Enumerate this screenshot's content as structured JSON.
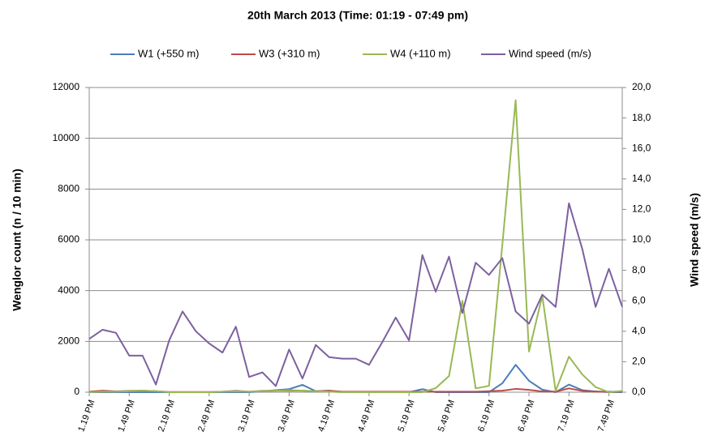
{
  "chart_data": {
    "type": "line",
    "title": "20th March 2013   (Time: 01:19 - 07:49 pm)",
    "y_label": "Wenglor count (n / 10 min)",
    "y2_label": "Wind speed (m/s)",
    "categories": [
      "1.19 PM",
      null,
      null,
      "1.49 PM",
      null,
      null,
      "2.19 PM",
      null,
      null,
      "2.49 PM",
      null,
      null,
      "3.19 PM",
      null,
      null,
      "3.49 PM",
      null,
      null,
      "4.19 PM",
      null,
      null,
      "4.49 PM",
      null,
      null,
      "5.19 PM",
      null,
      null,
      "5.49 PM",
      null,
      null,
      "6.19 PM",
      null,
      null,
      "6.49 PM",
      null,
      null,
      "7.19 PM",
      null,
      null,
      "7.49 PM",
      null
    ],
    "ylim": [
      0,
      12000
    ],
    "yticks": [
      0,
      2000,
      4000,
      6000,
      8000,
      10000,
      12000
    ],
    "y2lim": [
      0,
      20
    ],
    "y2ticks": [
      {
        "value": 0,
        "label": "0,0"
      },
      {
        "value": 2,
        "label": "2,0"
      },
      {
        "value": 4,
        "label": "4,0"
      },
      {
        "value": 6,
        "label": "6,0"
      },
      {
        "value": 8,
        "label": "8,0"
      },
      {
        "value": 10,
        "label": "10,0"
      },
      {
        "value": 12,
        "label": "12,0"
      },
      {
        "value": 14,
        "label": "14,0"
      },
      {
        "value": 16,
        "label": "16,0"
      },
      {
        "value": 18,
        "label": "18,0"
      },
      {
        "value": 20,
        "label": "20,0"
      }
    ],
    "grid": true,
    "legend": "top",
    "series": [
      {
        "name": "W1 (+550 m)",
        "color": "#4a7ebb",
        "values": [
          0,
          0,
          0,
          0,
          0,
          0,
          0,
          0,
          0,
          0,
          0,
          0,
          0,
          30,
          80,
          120,
          290,
          40,
          60,
          0,
          0,
          0,
          0,
          0,
          0,
          120,
          0,
          0,
          0,
          0,
          0,
          350,
          1080,
          450,
          100,
          0,
          300,
          80,
          30,
          0,
          0
        ]
      },
      {
        "name": "W3 (+310 m)",
        "color": "#be4b48",
        "values": [
          20,
          60,
          30,
          50,
          60,
          40,
          10,
          10,
          10,
          10,
          20,
          50,
          20,
          50,
          60,
          60,
          60,
          40,
          60,
          20,
          20,
          20,
          20,
          20,
          20,
          20,
          20,
          20,
          20,
          20,
          40,
          60,
          130,
          90,
          30,
          20,
          150,
          50,
          20,
          20,
          20
        ]
      },
      {
        "name": "W4 (+110 m)",
        "color": "#98b954",
        "values": [
          0,
          20,
          20,
          40,
          60,
          40,
          0,
          0,
          0,
          0,
          20,
          30,
          20,
          40,
          60,
          80,
          60,
          40,
          20,
          0,
          0,
          0,
          0,
          0,
          0,
          0,
          160,
          640,
          3600,
          150,
          250,
          5800,
          11500,
          1600,
          3800,
          50,
          1400,
          700,
          200,
          0,
          50
        ]
      },
      {
        "name": "Wind speed (m/s)",
        "color": "#7d60a0",
        "axis": "y2",
        "values": [
          3.5,
          4.1,
          3.9,
          2.4,
          2.4,
          0.5,
          3.4,
          5.3,
          4.0,
          3.2,
          2.6,
          4.3,
          1.0,
          1.3,
          0.4,
          2.8,
          0.9,
          3.1,
          2.3,
          2.2,
          2.2,
          1.8,
          3.3,
          4.9,
          3.4,
          9.0,
          6.6,
          8.9,
          5.2,
          8.5,
          7.7,
          8.8,
          5.3,
          4.5,
          6.4,
          5.6,
          12.4,
          9.4,
          5.6,
          8.1,
          5.6
        ]
      }
    ]
  }
}
